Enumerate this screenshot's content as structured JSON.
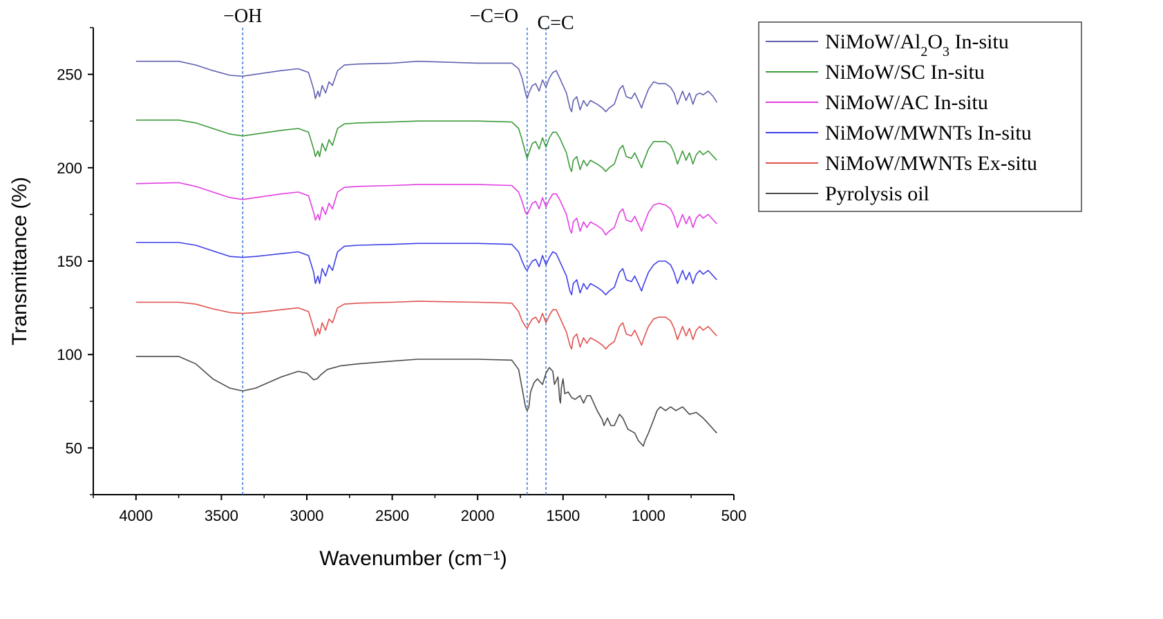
{
  "chart_data": {
    "type": "line",
    "title": "",
    "xlabel": "Wavenumber (cm⁻¹)",
    "ylabel": "Transmittance (%)",
    "xlim": [
      4250,
      500
    ],
    "ylim": [
      25,
      275
    ],
    "xticks": [
      4000,
      3500,
      3000,
      2500,
      2000,
      1500,
      1000,
      500
    ],
    "yticks": [
      50,
      100,
      150,
      200,
      250
    ],
    "grid": false,
    "legend_position": "outside-right",
    "annotations": [
      {
        "label": "−OH",
        "x": 3375
      },
      {
        "label": "−C=O",
        "x": 1710
      },
      {
        "label": "C=C",
        "x": 1600
      }
    ],
    "series": [
      {
        "name": "NiMoW/Al2O3 In-situ",
        "legend_main": "NiMoW/Al",
        "legend_sub1": "2",
        "legend_mid": "O",
        "legend_sub2": "3",
        "legend_tail": " In-situ",
        "color": "#6060b0",
        "x": [
          4000,
          3750,
          3650,
          3550,
          3450,
          3375,
          3300,
          3150,
          3050,
          2990,
          2960,
          2950,
          2935,
          2925,
          2910,
          2890,
          2870,
          2850,
          2820,
          2780,
          2700,
          2500,
          2350,
          2000,
          1800,
          1760,
          1740,
          1720,
          1710,
          1700,
          1680,
          1660,
          1640,
          1620,
          1600,
          1580,
          1560,
          1540,
          1520,
          1500,
          1480,
          1460,
          1450,
          1440,
          1420,
          1400,
          1380,
          1360,
          1340,
          1300,
          1270,
          1250,
          1230,
          1200,
          1170,
          1150,
          1130,
          1100,
          1080,
          1060,
          1040,
          1030,
          1000,
          970,
          940,
          900,
          870,
          850,
          830,
          800,
          780,
          760,
          740,
          720,
          700,
          680,
          650,
          620,
          600
        ],
        "y": [
          257,
          257,
          255,
          252,
          249.5,
          249,
          250,
          252,
          253,
          251,
          242,
          237,
          241,
          238,
          244,
          240,
          246,
          244,
          252,
          255,
          255.5,
          256,
          257,
          256,
          256,
          253,
          248,
          240,
          237,
          240,
          244,
          245,
          241,
          247,
          243,
          248,
          251,
          252,
          248,
          244,
          240,
          232,
          230,
          236,
          238,
          231,
          236,
          233,
          236,
          234,
          232,
          230,
          232,
          234,
          242,
          244,
          238,
          237,
          240,
          236,
          232,
          235,
          242,
          246,
          245,
          245,
          243,
          240,
          234,
          241,
          236,
          240,
          234,
          239,
          240,
          239,
          241,
          238,
          235
        ]
      },
      {
        "name": "NiMoW/SC In-situ",
        "legend_main": "NiMoW/SC In-situ",
        "legend_sub1": "",
        "legend_mid": "",
        "legend_sub2": "",
        "legend_tail": "",
        "color": "#3a9a3a",
        "x": [
          4000,
          3750,
          3650,
          3550,
          3450,
          3375,
          3300,
          3150,
          3050,
          2990,
          2960,
          2950,
          2935,
          2925,
          2910,
          2890,
          2870,
          2850,
          2820,
          2780,
          2700,
          2500,
          2350,
          2000,
          1800,
          1760,
          1740,
          1720,
          1710,
          1700,
          1680,
          1660,
          1640,
          1620,
          1600,
          1580,
          1560,
          1540,
          1520,
          1500,
          1480,
          1460,
          1450,
          1440,
          1420,
          1400,
          1380,
          1360,
          1340,
          1300,
          1270,
          1250,
          1230,
          1200,
          1170,
          1150,
          1130,
          1100,
          1080,
          1060,
          1040,
          1030,
          1000,
          970,
          940,
          900,
          870,
          850,
          830,
          800,
          780,
          760,
          740,
          720,
          700,
          680,
          650,
          620,
          600
        ],
        "y": [
          225.5,
          225.5,
          224,
          221,
          218,
          217,
          218,
          220,
          221,
          219,
          210,
          206,
          209,
          206,
          213,
          209,
          215,
          212,
          221,
          223.5,
          224,
          224.5,
          225,
          225,
          224.5,
          221,
          215,
          208,
          205,
          208,
          213,
          214,
          210,
          216,
          211,
          216,
          219,
          219,
          216,
          212,
          208,
          200,
          198,
          204,
          206,
          199,
          204,
          201,
          204,
          202,
          200,
          198,
          200,
          202,
          210,
          212,
          206,
          205,
          208,
          204,
          200,
          203,
          210,
          214,
          214,
          214,
          212,
          208,
          202,
          209,
          204,
          208,
          202,
          207,
          209,
          207,
          209,
          206,
          204
        ]
      },
      {
        "name": "NiMoW/AC In-situ",
        "legend_main": "NiMoW/AC In-situ",
        "legend_sub1": "",
        "legend_mid": "",
        "legend_sub2": "",
        "legend_tail": "",
        "color": "#e23de2",
        "x": [
          4000,
          3750,
          3650,
          3550,
          3450,
          3375,
          3300,
          3150,
          3050,
          2990,
          2960,
          2950,
          2935,
          2925,
          2910,
          2890,
          2870,
          2850,
          2820,
          2780,
          2700,
          2500,
          2350,
          2000,
          1800,
          1760,
          1740,
          1720,
          1710,
          1700,
          1680,
          1660,
          1640,
          1620,
          1600,
          1580,
          1560,
          1540,
          1520,
          1500,
          1480,
          1460,
          1450,
          1440,
          1420,
          1400,
          1380,
          1360,
          1340,
          1300,
          1270,
          1250,
          1230,
          1200,
          1170,
          1150,
          1130,
          1100,
          1080,
          1060,
          1040,
          1030,
          1000,
          970,
          940,
          900,
          870,
          850,
          830,
          800,
          780,
          760,
          740,
          720,
          700,
          680,
          650,
          620,
          600
        ],
        "y": [
          191.5,
          192,
          190,
          187,
          184,
          183,
          184,
          186,
          187,
          185,
          176,
          172,
          175,
          172,
          179,
          175,
          181,
          178,
          187,
          189.5,
          190,
          190.5,
          191,
          191,
          190.5,
          187,
          182,
          176,
          175,
          177,
          181,
          182,
          178,
          184,
          179,
          183,
          186,
          186,
          183,
          179,
          175,
          167,
          165,
          171,
          173,
          166,
          171,
          168,
          171,
          169,
          167,
          164,
          166,
          168,
          176,
          178,
          172,
          171,
          174,
          170,
          166,
          169,
          176,
          180,
          181,
          180,
          178,
          174,
          168,
          175,
          170,
          174,
          168,
          173,
          175,
          173,
          175,
          172,
          170
        ]
      },
      {
        "name": "NiMoW/MWNTs In-situ",
        "legend_main": "NiMoW/MWNTs In-situ",
        "legend_sub1": "",
        "legend_mid": "",
        "legend_sub2": "",
        "legend_tail": "",
        "color": "#3e3ee8",
        "x": [
          4000,
          3750,
          3650,
          3550,
          3450,
          3375,
          3300,
          3150,
          3050,
          2990,
          2960,
          2950,
          2935,
          2925,
          2910,
          2890,
          2870,
          2850,
          2820,
          2780,
          2700,
          2500,
          2350,
          2000,
          1800,
          1760,
          1740,
          1720,
          1710,
          1700,
          1680,
          1660,
          1640,
          1620,
          1600,
          1580,
          1560,
          1540,
          1520,
          1500,
          1480,
          1460,
          1450,
          1440,
          1420,
          1400,
          1380,
          1360,
          1340,
          1300,
          1270,
          1250,
          1230,
          1200,
          1170,
          1150,
          1130,
          1100,
          1080,
          1060,
          1040,
          1030,
          1000,
          970,
          940,
          900,
          870,
          850,
          830,
          800,
          780,
          760,
          740,
          720,
          700,
          680,
          650,
          620,
          600
        ],
        "y": [
          160,
          160,
          158.5,
          155.5,
          152.5,
          152,
          152.5,
          154,
          155,
          153,
          144,
          138,
          142,
          138,
          146,
          142,
          148,
          145,
          155,
          158,
          158.5,
          159,
          159.5,
          159.5,
          159,
          155,
          150,
          146,
          145,
          147,
          150,
          151,
          147,
          153,
          148,
          152,
          155,
          154,
          150,
          146,
          142,
          134,
          132,
          138,
          140,
          133,
          138,
          135,
          138,
          136,
          134,
          132,
          134,
          136,
          144,
          146,
          140,
          139,
          142,
          138,
          134,
          137,
          144,
          148,
          150,
          150,
          148,
          144,
          138,
          145,
          140,
          144,
          138,
          143,
          145,
          143,
          145,
          142,
          140
        ]
      },
      {
        "name": "NiMoW/MWNTs Ex-situ",
        "legend_main": "NiMoW/MWNTs Ex-situ",
        "legend_sub1": "",
        "legend_mid": "",
        "legend_sub2": "",
        "legend_tail": "",
        "color": "#e05050",
        "x": [
          4000,
          3750,
          3650,
          3550,
          3450,
          3375,
          3300,
          3150,
          3050,
          2990,
          2960,
          2950,
          2935,
          2925,
          2910,
          2890,
          2870,
          2850,
          2820,
          2780,
          2700,
          2500,
          2350,
          2000,
          1800,
          1760,
          1740,
          1720,
          1710,
          1700,
          1680,
          1660,
          1640,
          1620,
          1600,
          1580,
          1560,
          1540,
          1520,
          1500,
          1480,
          1460,
          1450,
          1440,
          1420,
          1400,
          1380,
          1360,
          1340,
          1300,
          1270,
          1250,
          1230,
          1200,
          1170,
          1150,
          1130,
          1100,
          1080,
          1060,
          1040,
          1030,
          1000,
          970,
          940,
          900,
          870,
          850,
          830,
          800,
          780,
          760,
          740,
          720,
          700,
          680,
          650,
          620,
          600
        ],
        "y": [
          128,
          128,
          127,
          124.5,
          122.5,
          122,
          122.5,
          124,
          125,
          123,
          114,
          110,
          114,
          111,
          117,
          113,
          119,
          117,
          125,
          127,
          127.5,
          128,
          128.5,
          128,
          127.5,
          123,
          118,
          115,
          114,
          116,
          119,
          120,
          117,
          122,
          117,
          121,
          124,
          124,
          120,
          116,
          112,
          105,
          103,
          109,
          111,
          104,
          109,
          106,
          109,
          107,
          105,
          103,
          105,
          107,
          115,
          117,
          111,
          110,
          113,
          109,
          105,
          108,
          115,
          119,
          120,
          120,
          118,
          114,
          108,
          115,
          110,
          114,
          108,
          113,
          115,
          113,
          115,
          112,
          110
        ]
      },
      {
        "name": "Pyrolysis oil",
        "legend_main": "Pyrolysis oil",
        "legend_sub1": "",
        "legend_mid": "",
        "legend_sub2": "",
        "legend_tail": "",
        "color": "#4a4a4a",
        "x": [
          4000,
          3750,
          3650,
          3550,
          3450,
          3375,
          3300,
          3150,
          3050,
          3000,
          2960,
          2940,
          2920,
          2880,
          2800,
          2700,
          2500,
          2350,
          2000,
          1800,
          1760,
          1740,
          1720,
          1710,
          1700,
          1690,
          1670,
          1650,
          1620,
          1600,
          1580,
          1560,
          1550,
          1530,
          1520,
          1515,
          1510,
          1500,
          1490,
          1470,
          1450,
          1430,
          1400,
          1380,
          1360,
          1340,
          1300,
          1270,
          1260,
          1240,
          1220,
          1200,
          1170,
          1150,
          1120,
          1100,
          1080,
          1060,
          1040,
          1030,
          1020,
          1000,
          970,
          950,
          930,
          900,
          870,
          840,
          800,
          760,
          720,
          680,
          650,
          620,
          600
        ],
        "y": [
          99,
          99,
          95,
          87,
          82,
          80.5,
          82,
          88,
          91,
          90,
          86.5,
          87,
          89,
          92,
          94,
          95,
          96.5,
          97.5,
          97.5,
          97,
          92,
          82,
          72,
          70,
          72,
          80,
          85,
          87,
          84,
          90,
          93,
          91,
          84,
          88,
          76,
          74,
          82,
          87,
          79,
          80,
          77,
          76,
          78,
          74,
          78,
          78,
          70,
          65,
          62,
          66,
          62,
          62,
          68,
          66,
          60,
          59,
          58,
          54,
          52,
          51,
          54,
          58,
          65,
          70,
          72,
          70,
          72,
          70,
          72,
          68,
          69,
          66,
          63,
          60,
          58
        ]
      }
    ]
  }
}
